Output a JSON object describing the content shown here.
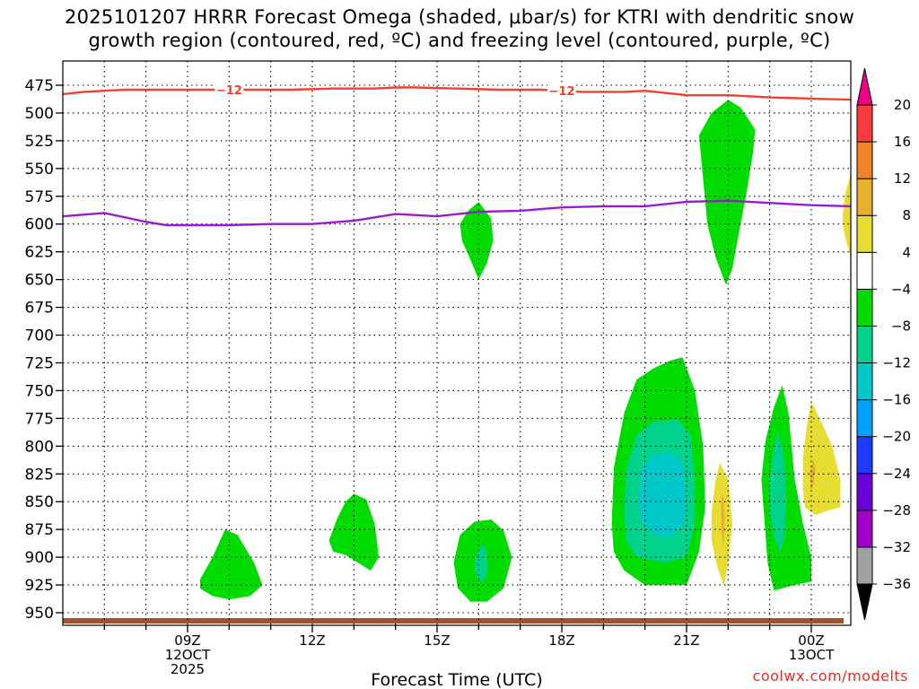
{
  "title": {
    "line1": "2025101207 HRRR Forecast Omega (shaded, μbar/s) for KTRI with dendritic snow",
    "line2": "growth region (contoured, red, ºC) and freezing level (contoured, purple, ºC)"
  },
  "credit": "coolwx.com/modelts",
  "chart_data": {
    "type": "contour",
    "xlabel": "Forecast Time (UTC)",
    "ylabel": "",
    "xlim": [
      6.0,
      24.95
    ],
    "ylim": [
      475,
      950
    ],
    "yticks": [
      475,
      500,
      525,
      550,
      575,
      600,
      625,
      650,
      675,
      700,
      725,
      750,
      775,
      800,
      825,
      850,
      875,
      900,
      925,
      950
    ],
    "xticks": [
      {
        "x": 9,
        "lines": [
          "09Z",
          "12OCT",
          "2025"
        ]
      },
      {
        "x": 12,
        "lines": [
          "12Z"
        ]
      },
      {
        "x": 15,
        "lines": [
          "15Z"
        ]
      },
      {
        "x": 18,
        "lines": [
          "18Z"
        ]
      },
      {
        "x": 21,
        "lines": [
          "21Z"
        ]
      },
      {
        "x": 24,
        "lines": [
          "00Z",
          "13OCT"
        ]
      }
    ],
    "colorbar": {
      "levels": [
        -36,
        -32,
        -28,
        -24,
        -20,
        -16,
        -12,
        -8,
        -4,
        4,
        8,
        12,
        16,
        20
      ],
      "level_labels": [
        "−36",
        "−32",
        "−28",
        "−24",
        "−20",
        "−16",
        "−12",
        "−8",
        "−4",
        "4",
        "8",
        "12",
        "16",
        "20"
      ],
      "colors": [
        "#000000",
        "#a0a0a0",
        "#a000c8",
        "#6a00d8",
        "#1e3cff",
        "#00a0ff",
        "#00c8c8",
        "#00d28c",
        "#00dc00",
        "#ffffff",
        "#e6dc32",
        "#e6af2d",
        "#f08228",
        "#fa3c3c",
        "#f00082"
      ]
    },
    "dgz_line": {
      "label": "−12",
      "color": "#f04030",
      "points": [
        [
          6.0,
          483
        ],
        [
          6.5,
          481
        ],
        [
          7.5,
          479
        ],
        [
          8.5,
          479
        ],
        [
          9.5,
          479
        ],
        [
          10.5,
          479
        ],
        [
          11.5,
          479
        ],
        [
          12.5,
          478
        ],
        [
          13.5,
          478
        ],
        [
          14,
          477
        ],
        [
          14.5,
          477
        ],
        [
          15.5,
          478
        ],
        [
          16.5,
          479
        ],
        [
          17.5,
          479
        ],
        [
          18.5,
          481
        ],
        [
          19.5,
          481
        ],
        [
          20,
          480
        ],
        [
          21,
          484
        ],
        [
          22,
          484
        ],
        [
          23,
          486
        ],
        [
          24,
          487
        ],
        [
          24.95,
          488
        ]
      ],
      "label_positions": [
        10.0,
        18.0
      ]
    },
    "freezing_line": {
      "color": "#9a1cc8",
      "points": [
        [
          6.0,
          593
        ],
        [
          7,
          590
        ],
        [
          8,
          598
        ],
        [
          8.5,
          601
        ],
        [
          9,
          601
        ],
        [
          10,
          601
        ],
        [
          11,
          600
        ],
        [
          12,
          600
        ],
        [
          13,
          597
        ],
        [
          14,
          591
        ],
        [
          15,
          593
        ],
        [
          16,
          589
        ],
        [
          17,
          588
        ],
        [
          18,
          585
        ],
        [
          19,
          584
        ],
        [
          20,
          584
        ],
        [
          21,
          580
        ],
        [
          22,
          579
        ],
        [
          23,
          581
        ],
        [
          24,
          583
        ],
        [
          24.95,
          584
        ]
      ]
    },
    "surface": {
      "color": "#a0522d"
    },
    "shaded_regions": [
      {
        "level": "-8",
        "color": "#00dc00",
        "points": [
          [
            9.3,
            920
          ],
          [
            9.6,
            900
          ],
          [
            9.9,
            875
          ],
          [
            10.2,
            880
          ],
          [
            10.6,
            905
          ],
          [
            10.8,
            925
          ],
          [
            10.5,
            935
          ],
          [
            10.0,
            938
          ],
          [
            9.6,
            935
          ],
          [
            9.3,
            928
          ]
        ]
      },
      {
        "level": "-8",
        "color": "#00dc00",
        "points": [
          [
            12.4,
            885
          ],
          [
            12.6,
            865
          ],
          [
            12.8,
            850
          ],
          [
            13.0,
            843
          ],
          [
            13.3,
            848
          ],
          [
            13.5,
            870
          ],
          [
            13.6,
            900
          ],
          [
            13.4,
            912
          ],
          [
            13.1,
            905
          ],
          [
            12.8,
            898
          ],
          [
            12.5,
            895
          ]
        ]
      },
      {
        "level": "-8",
        "color": "#00dc00",
        "points": [
          [
            15.55,
            600
          ],
          [
            15.75,
            588
          ],
          [
            16.0,
            580
          ],
          [
            16.3,
            595
          ],
          [
            16.35,
            615
          ],
          [
            16.2,
            635
          ],
          [
            16.0,
            650
          ],
          [
            15.8,
            632
          ],
          [
            15.6,
            615
          ]
        ]
      },
      {
        "level": "-8",
        "color": "#00dc00",
        "points": [
          [
            15.4,
            905
          ],
          [
            15.55,
            880
          ],
          [
            15.9,
            868
          ],
          [
            16.3,
            866
          ],
          [
            16.6,
            876
          ],
          [
            16.8,
            900
          ],
          [
            16.6,
            928
          ],
          [
            16.2,
            940
          ],
          [
            15.8,
            940
          ],
          [
            15.5,
            928
          ]
        ]
      },
      {
        "level": "-12",
        "color": "#00d28c",
        "points": [
          [
            15.9,
            905
          ],
          [
            16.0,
            893
          ],
          [
            16.1,
            888
          ],
          [
            16.2,
            895
          ],
          [
            16.2,
            915
          ],
          [
            16.1,
            923
          ],
          [
            15.95,
            918
          ]
        ]
      },
      {
        "level": "-8",
        "color": "#00dc00",
        "points": [
          [
            21.3,
            520
          ],
          [
            21.6,
            500
          ],
          [
            22.0,
            488
          ],
          [
            22.3,
            495
          ],
          [
            22.65,
            515
          ],
          [
            22.6,
            535
          ],
          [
            22.45,
            570
          ],
          [
            22.3,
            600
          ],
          [
            22.1,
            640
          ],
          [
            21.95,
            655
          ],
          [
            21.7,
            630
          ],
          [
            21.5,
            600
          ],
          [
            21.4,
            560
          ]
        ]
      },
      {
        "level": "-8",
        "color": "#00dc00",
        "points": [
          [
            19.2,
            870
          ],
          [
            19.25,
            820
          ],
          [
            19.5,
            770
          ],
          [
            19.8,
            740
          ],
          [
            20.2,
            730
          ],
          [
            20.6,
            723
          ],
          [
            20.9,
            720
          ],
          [
            21.2,
            750
          ],
          [
            21.4,
            800
          ],
          [
            21.45,
            855
          ],
          [
            21.3,
            895
          ],
          [
            21.0,
            925
          ],
          [
            20.0,
            925
          ],
          [
            19.5,
            912
          ],
          [
            19.25,
            895
          ]
        ]
      },
      {
        "level": "-12",
        "color": "#00d28c",
        "points": [
          [
            19.5,
            860
          ],
          [
            19.55,
            820
          ],
          [
            19.8,
            790
          ],
          [
            20.2,
            778
          ],
          [
            20.8,
            776
          ],
          [
            21.1,
            790
          ],
          [
            21.2,
            830
          ],
          [
            21.2,
            870
          ],
          [
            21.0,
            900
          ],
          [
            20.5,
            905
          ],
          [
            19.8,
            900
          ],
          [
            19.55,
            885
          ]
        ]
      },
      {
        "level": "-16",
        "color": "#00c8c8",
        "points": [
          [
            19.85,
            850
          ],
          [
            19.9,
            822
          ],
          [
            20.2,
            808
          ],
          [
            20.6,
            805
          ],
          [
            20.9,
            815
          ],
          [
            21.0,
            840
          ],
          [
            20.95,
            870
          ],
          [
            20.6,
            882
          ],
          [
            20.2,
            880
          ],
          [
            19.9,
            868
          ]
        ]
      },
      {
        "level": "4",
        "color": "#e6dc32",
        "points": [
          [
            21.6,
            860
          ],
          [
            21.7,
            830
          ],
          [
            21.8,
            815
          ],
          [
            22.0,
            830
          ],
          [
            22.1,
            870
          ],
          [
            22.0,
            905
          ],
          [
            21.9,
            926
          ],
          [
            21.75,
            910
          ],
          [
            21.6,
            885
          ]
        ]
      },
      {
        "level": "8",
        "color": "#e6af2d",
        "points": [
          [
            21.83,
            860
          ],
          [
            21.85,
            845
          ],
          [
            21.88,
            842
          ],
          [
            21.91,
            860
          ],
          [
            21.91,
            878
          ],
          [
            21.88,
            890
          ],
          [
            21.85,
            878
          ]
        ]
      },
      {
        "level": "-8",
        "color": "#00dc00",
        "points": [
          [
            22.8,
            830
          ],
          [
            22.9,
            795
          ],
          [
            23.1,
            765
          ],
          [
            23.3,
            745
          ],
          [
            23.45,
            770
          ],
          [
            23.6,
            830
          ],
          [
            23.8,
            870
          ],
          [
            24.0,
            900
          ],
          [
            24.0,
            922
          ],
          [
            23.6,
            925
          ],
          [
            23.1,
            930
          ],
          [
            22.95,
            905
          ]
        ]
      },
      {
        "level": "-12",
        "color": "#00d28c",
        "points": [
          [
            23.0,
            830
          ],
          [
            23.1,
            800
          ],
          [
            23.2,
            787
          ],
          [
            23.35,
            810
          ],
          [
            23.4,
            850
          ],
          [
            23.35,
            885
          ],
          [
            23.25,
            895
          ],
          [
            23.1,
            880
          ],
          [
            23.0,
            860
          ]
        ]
      },
      {
        "level": "4",
        "color": "#e6dc32",
        "points": [
          [
            23.8,
            840
          ],
          [
            23.8,
            810
          ],
          [
            23.9,
            780
          ],
          [
            24.0,
            760
          ],
          [
            24.2,
            775
          ],
          [
            24.5,
            800
          ],
          [
            24.7,
            830
          ],
          [
            24.7,
            855
          ],
          [
            24.4,
            858
          ],
          [
            24.1,
            862
          ],
          [
            23.85,
            855
          ]
        ]
      },
      {
        "level": "8",
        "color": "#e6af2d",
        "points": [
          [
            23.97,
            825
          ],
          [
            24.0,
            818
          ],
          [
            24.05,
            812
          ],
          [
            24.1,
            820
          ],
          [
            24.05,
            835
          ],
          [
            24.0,
            840
          ]
        ]
      },
      {
        "level": "4",
        "color": "#e6dc32",
        "points": [
          [
            24.95,
            555
          ],
          [
            24.8,
            575
          ],
          [
            24.75,
            595
          ],
          [
            24.8,
            610
          ],
          [
            24.95,
            630
          ]
        ]
      }
    ]
  }
}
